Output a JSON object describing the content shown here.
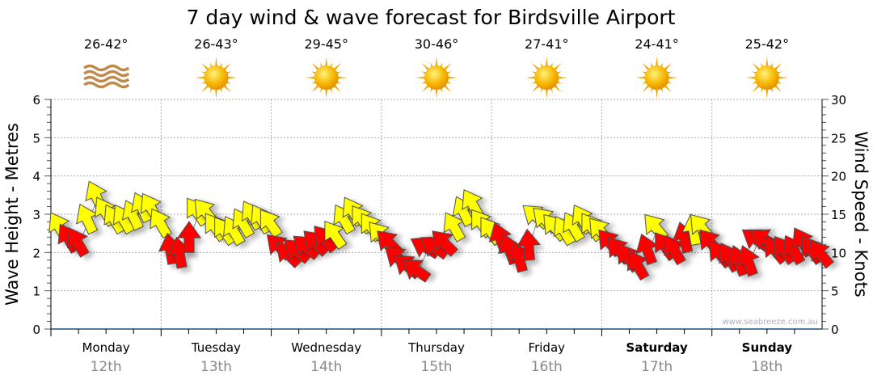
{
  "chart_data": {
    "type": "scatter",
    "title": "7 day wind & wave forecast for Birdsville Airport",
    "ylabel_left": "Wave Height - Metres",
    "ylabel_right": "Wind Speed - Knots",
    "ylim_left": [
      0,
      6
    ],
    "ylim_right": [
      0,
      30
    ],
    "yticks_left": [
      "0",
      "1",
      "2",
      "3",
      "4",
      "5",
      "6"
    ],
    "yticks_right": [
      "0",
      "5",
      "10",
      "15",
      "20",
      "25",
      "30"
    ],
    "grid": true,
    "watermark": "www.seabreeze.com.au",
    "days": [
      {
        "name": "Monday",
        "date": "12th",
        "temp": "26-42°",
        "icon": "haze",
        "bold": false
      },
      {
        "name": "Tuesday",
        "date": "13th",
        "temp": "26-43°",
        "icon": "sun",
        "bold": false
      },
      {
        "name": "Wednesday",
        "date": "14th",
        "temp": "29-45°",
        "icon": "sun",
        "bold": false
      },
      {
        "name": "Thursday",
        "date": "15th",
        "temp": "30-46°",
        "icon": "sun",
        "bold": false
      },
      {
        "name": "Friday",
        "date": "16th",
        "temp": "27-41°",
        "icon": "sun",
        "bold": false
      },
      {
        "name": "Saturday",
        "date": "17th",
        "temp": "24-41°",
        "icon": "sun",
        "bold": true
      },
      {
        "name": "Sunday",
        "date": "18th",
        "temp": "25-42°",
        "icon": "sun",
        "bold": true
      }
    ],
    "wind_interval_hours": 2,
    "wind_color_threshold_knots": 12,
    "colors": {
      "strong": "#ffff00",
      "light": "#ff0000",
      "axis": "#1f4e79"
    },
    "wind_speed_knots": [
      13,
      11.5,
      11,
      14,
      17,
      15,
      14,
      14,
      14.5,
      15.5,
      15.5,
      13.5,
      10,
      9.5,
      11.5,
      15,
      15,
      13,
      12.5,
      12.5,
      13.5,
      14.5,
      14,
      13.5,
      10.5,
      9.5,
      10,
      10.5,
      11,
      11.5,
      12,
      14,
      15,
      14,
      13,
      12,
      11,
      9,
      8,
      7.5,
      10.5,
      10.5,
      11,
      13,
      15,
      16,
      13.5,
      12.5,
      11.5,
      10,
      9,
      10.5,
      14.5,
      14,
      13,
      12.5,
      13,
      14,
      13,
      12.5,
      11,
      10,
      9,
      8,
      10,
      13,
      10.5,
      10,
      11.5,
      12.5,
      13,
      11,
      9.5,
      9,
      8.5,
      8.5,
      11.5,
      11.5,
      10,
      10,
      10,
      11,
      10,
      9.5
    ],
    "wind_arrow_rotation_deg": [
      -30,
      -30,
      -30,
      -25,
      -25,
      -30,
      -30,
      -30,
      -25,
      -25,
      -30,
      -30,
      -10,
      -10,
      0,
      -35,
      -40,
      -35,
      -35,
      -30,
      -30,
      -30,
      -30,
      -35,
      -45,
      -45,
      -50,
      -50,
      -45,
      -40,
      -35,
      -30,
      -30,
      -35,
      -35,
      -40,
      -45,
      -50,
      -50,
      -55,
      -60,
      -55,
      -45,
      -30,
      -25,
      -30,
      -35,
      -35,
      -20,
      -20,
      -15,
      -5,
      -50,
      -45,
      -40,
      -30,
      -30,
      -30,
      -35,
      -40,
      -40,
      -40,
      -35,
      -30,
      -20,
      -40,
      -35,
      -30,
      -15,
      -10,
      -40,
      -40,
      -40,
      -30,
      -20,
      -20,
      -55,
      -60,
      -40,
      -35,
      -30,
      -30,
      -35,
      -40
    ]
  }
}
